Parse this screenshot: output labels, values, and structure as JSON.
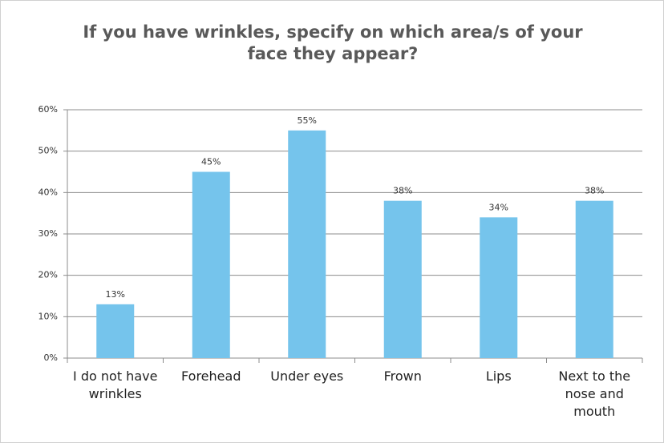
{
  "chart_data": {
    "type": "bar",
    "title": "If you have wrinkles, specify on which area/s of your face they appear?",
    "categories": [
      "I do not have wrinkles",
      "Forehead",
      "Under eyes",
      "Frown",
      "Lips",
      "Next to the nose and mouth"
    ],
    "values": [
      13,
      45,
      55,
      38,
      34,
      38
    ],
    "value_labels": [
      "13%",
      "45%",
      "55%",
      "38%",
      "34%",
      "38%"
    ],
    "color": "#75c4ec",
    "ylim": [
      0,
      60
    ],
    "yticks": [
      {
        "value": 0,
        "label": "0%"
      },
      {
        "value": 10,
        "label": "10%"
      },
      {
        "value": 20,
        "label": "20%"
      },
      {
        "value": 30,
        "label": "30%"
      },
      {
        "value": 40,
        "label": "40%"
      },
      {
        "value": 50,
        "label": "50%"
      },
      {
        "value": 60,
        "label": "60%"
      }
    ],
    "grid": true
  }
}
